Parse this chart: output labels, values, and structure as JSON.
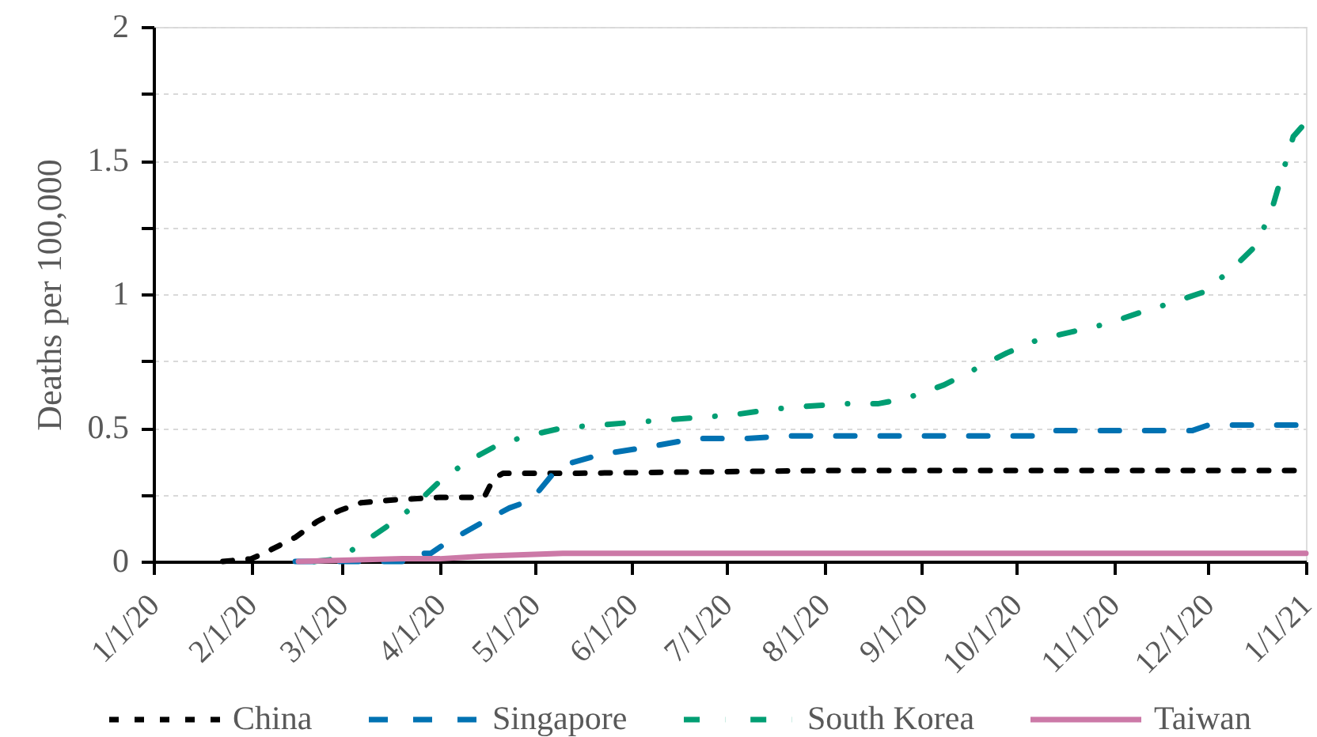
{
  "chart_data": {
    "type": "line",
    "ylabel": "Deaths per 100,000",
    "legend": "bottom",
    "grid": "y",
    "xlim": [
      "2020-01-01",
      "2021-01-01"
    ],
    "xticks": [
      {
        "value": "2020-01-01",
        "label": "1/1/20"
      },
      {
        "value": "2020-02-01",
        "label": "2/1/20"
      },
      {
        "value": "2020-03-01",
        "label": "3/1/20"
      },
      {
        "value": "2020-04-01",
        "label": "4/1/20"
      },
      {
        "value": "2020-05-01",
        "label": "5/1/20"
      },
      {
        "value": "2020-06-01",
        "label": "6/1/20"
      },
      {
        "value": "2020-07-01",
        "label": "7/1/20"
      },
      {
        "value": "2020-08-01",
        "label": "8/1/20"
      },
      {
        "value": "2020-09-01",
        "label": "9/1/20"
      },
      {
        "value": "2020-10-01",
        "label": "10/1/20"
      },
      {
        "value": "2020-11-01",
        "label": "11/1/20"
      },
      {
        "value": "2020-12-01",
        "label": "12/1/20"
      },
      {
        "value": "2021-01-01",
        "label": "1/1/21"
      }
    ],
    "ylim": [
      0,
      2
    ],
    "yticks": [
      0,
      {
        "value": 0.25,
        "label": null
      },
      0.5,
      {
        "value": 0.75,
        "label": null
      },
      1,
      {
        "value": 1.25,
        "label": null
      },
      1.5,
      {
        "value": 1.75,
        "label": null
      },
      2
    ],
    "series": [
      {
        "name": "China",
        "color": "#000000",
        "line_style": "dotted",
        "x": [
          "2020-01-23",
          "2020-02-01",
          "2020-02-05",
          "2020-02-15",
          "2020-02-22",
          "2020-02-29",
          "2020-03-07",
          "2020-03-17",
          "2020-04-01",
          "2020-04-15",
          "2020-04-18",
          "2020-04-21",
          "2020-05-15",
          "2020-08-01",
          "2020-09-15",
          "2020-11-01",
          "2021-01-01"
        ],
        "values": [
          0,
          0.01,
          0.03,
          0.09,
          0.15,
          0.19,
          0.22,
          0.23,
          0.24,
          0.24,
          0.31,
          0.33,
          0.33,
          0.34,
          0.34,
          0.34,
          0.34
        ]
      },
      {
        "name": "Singapore",
        "color": "#0072b2",
        "line_style": "dashed",
        "x": [
          "2020-02-15",
          "2020-03-20",
          "2020-03-22",
          "2020-03-29",
          "2020-04-03",
          "2020-04-15",
          "2020-04-23",
          "2020-04-30",
          "2020-05-07",
          "2020-05-13",
          "2020-05-22",
          "2020-06-07",
          "2020-06-21",
          "2020-07-07",
          "2020-07-21",
          "2020-10-10",
          "2020-10-13",
          "2020-11-26",
          "2020-12-01",
          "2021-01-01"
        ],
        "values": [
          0,
          0,
          0.03,
          0.03,
          0.07,
          0.15,
          0.2,
          0.23,
          0.33,
          0.37,
          0.4,
          0.43,
          0.46,
          0.46,
          0.47,
          0.47,
          0.49,
          0.49,
          0.51,
          0.51
        ]
      },
      {
        "name": "South Korea",
        "color": "#009e73",
        "line_style": "dashdot",
        "x": [
          "2020-02-21",
          "2020-02-29",
          "2020-03-05",
          "2020-03-15",
          "2020-03-23",
          "2020-03-31",
          "2020-04-09",
          "2020-04-20",
          "2020-04-29",
          "2020-05-10",
          "2020-05-21",
          "2020-06-01",
          "2020-06-12",
          "2020-06-24",
          "2020-07-04",
          "2020-07-16",
          "2020-07-26",
          "2020-08-07",
          "2020-08-18",
          "2020-08-27",
          "2020-09-08",
          "2020-09-18",
          "2020-09-28",
          "2020-10-08",
          "2020-10-19",
          "2020-10-30",
          "2020-11-09",
          "2020-11-20",
          "2020-11-30",
          "2020-12-09",
          "2020-12-16",
          "2020-12-21",
          "2020-12-24",
          "2020-12-28",
          "2020-12-31"
        ],
        "values": [
          0,
          0.01,
          0.05,
          0.13,
          0.2,
          0.29,
          0.37,
          0.44,
          0.47,
          0.5,
          0.51,
          0.52,
          0.53,
          0.54,
          0.55,
          0.57,
          0.58,
          0.59,
          0.59,
          0.61,
          0.66,
          0.72,
          0.78,
          0.83,
          0.86,
          0.89,
          0.93,
          0.97,
          1.01,
          1.1,
          1.18,
          1.31,
          1.43,
          1.59,
          1.63
        ]
      },
      {
        "name": "Taiwan",
        "color": "#cc79a7",
        "line_style": "solid",
        "x": [
          "2020-02-16",
          "2020-03-20",
          "2020-04-01",
          "2020-04-15",
          "2020-05-10",
          "2020-05-25",
          "2021-01-01"
        ],
        "values": [
          0,
          0.01,
          0.01,
          0.02,
          0.03,
          0.03,
          0.03
        ]
      }
    ]
  }
}
